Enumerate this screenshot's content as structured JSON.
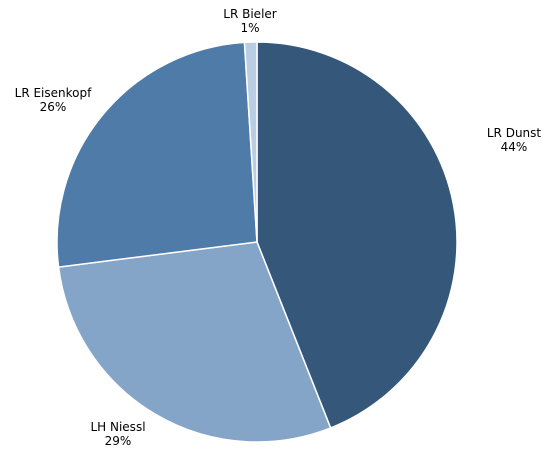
{
  "chart_data": {
    "type": "pie",
    "title": "",
    "slices": [
      {
        "label": "LR Dunst",
        "value": 44,
        "value_label": "44%",
        "color": "#34577a"
      },
      {
        "label": "LH Niessl",
        "value": 29,
        "value_label": "29%",
        "color": "#84a5c8"
      },
      {
        "label": "LR Eisenkopf",
        "value": 26,
        "value_label": "26%",
        "color": "#4e7ba8"
      },
      {
        "label": "LR Bieler",
        "value": 1,
        "value_label": "1%",
        "color": "#b9cde3"
      }
    ],
    "start": "12 o'clock",
    "direction": "clockwise",
    "legend": "none",
    "labels": "outside"
  }
}
